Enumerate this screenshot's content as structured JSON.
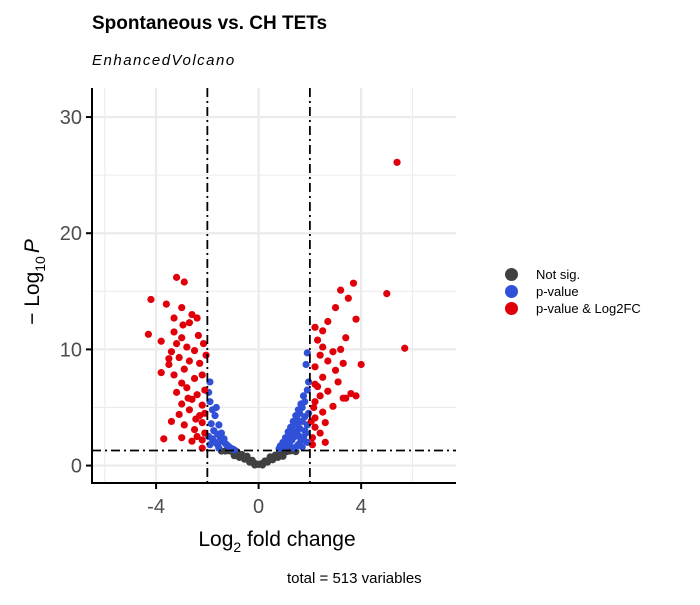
{
  "chart_data": {
    "type": "scatter",
    "title": "Spontaneous vs. CH TETs",
    "subtitle": "EnhancedVolcano",
    "caption": "total = 513 variables",
    "xlabel_main": "Log",
    "xlabel_sub": "2",
    "xlabel_rest": " fold change",
    "ylabel_main": "− Log",
    "ylabel_sub": "10",
    "ylabel_rest": "P",
    "xlim": [
      -6.5,
      7.7
    ],
    "ylim": [
      -1.5,
      32.5
    ],
    "xticks": [
      -4,
      0,
      4
    ],
    "xtick_labels": [
      "-4",
      "0",
      "4"
    ],
    "yticks": [
      0,
      10,
      20,
      30
    ],
    "ytick_labels": [
      "0",
      "10",
      "20",
      "30"
    ],
    "x_gridlines": [
      -6,
      -4,
      -2,
      0,
      2,
      4,
      6
    ],
    "y_gridlines": [
      0,
      5,
      10,
      15,
      20,
      25,
      30
    ],
    "grid": true,
    "fc_cutoff": [
      -2,
      2
    ],
    "p_cutoff_log10": 1.3,
    "legend_position": "right",
    "legend": [
      {
        "name": "Not sig.",
        "color": "#404040"
      },
      {
        "name": "p-value",
        "color": "#3050d8"
      },
      {
        "name": "p-value & Log2FC",
        "color": "#e0000a"
      }
    ],
    "series": [
      {
        "name": "Not sig.",
        "color": "#404040",
        "points": [
          [
            0,
            0.1
          ],
          [
            0.1,
            0.15
          ],
          [
            -0.1,
            0.15
          ],
          [
            0.2,
            0.25
          ],
          [
            -0.2,
            0.25
          ],
          [
            0.3,
            0.35
          ],
          [
            -0.3,
            0.35
          ],
          [
            0.4,
            0.45
          ],
          [
            -0.4,
            0.5
          ],
          [
            0.5,
            0.6
          ],
          [
            -0.5,
            0.6
          ],
          [
            0.6,
            0.7
          ],
          [
            -0.6,
            0.75
          ],
          [
            0.7,
            0.85
          ],
          [
            -0.7,
            0.9
          ],
          [
            0.8,
            0.95
          ],
          [
            -0.8,
            1.0
          ],
          [
            0.9,
            1.05
          ],
          [
            -0.9,
            1.1
          ],
          [
            1.0,
            1.15
          ],
          [
            -1.0,
            1.2
          ],
          [
            0.35,
            0.3
          ],
          [
            -0.35,
            0.3
          ],
          [
            0.55,
            0.5
          ],
          [
            -0.55,
            0.55
          ],
          [
            0.15,
            0.05
          ],
          [
            -0.15,
            0.05
          ],
          [
            0.75,
            0.7
          ],
          [
            -0.75,
            0.7
          ],
          [
            1.1,
            1.2
          ],
          [
            -1.1,
            1.25
          ],
          [
            1.2,
            1.25
          ],
          [
            -1.2,
            1.28
          ],
          [
            0.65,
            0.9
          ],
          [
            -0.65,
            0.95
          ],
          [
            0.45,
            0.75
          ],
          [
            -0.45,
            0.8
          ],
          [
            0.25,
            0.4
          ],
          [
            -0.25,
            0.45
          ],
          [
            0.85,
            1.2
          ],
          [
            -0.85,
            1.2
          ],
          [
            1.3,
            1.28
          ],
          [
            -1.3,
            1.25
          ],
          [
            1.45,
            1.2
          ],
          [
            -1.45,
            1.25
          ],
          [
            0.95,
            0.8
          ],
          [
            -0.95,
            0.85
          ]
        ]
      },
      {
        "name": "p-value",
        "color": "#3050d8",
        "points": [
          [
            -1.9,
            5.5
          ],
          [
            -1.8,
            4.8
          ],
          [
            -1.7,
            4.3
          ],
          [
            -1.85,
            3.6
          ],
          [
            -1.75,
            3.0
          ],
          [
            -1.6,
            2.7
          ],
          [
            -1.5,
            2.4
          ],
          [
            -1.4,
            2.1
          ],
          [
            -1.3,
            1.9
          ],
          [
            -1.2,
            1.7
          ],
          [
            -1.1,
            1.5
          ],
          [
            -1.0,
            1.4
          ],
          [
            -1.95,
            6.3
          ],
          [
            -1.9,
            7.2
          ],
          [
            -1.65,
            5.0
          ],
          [
            -1.55,
            3.5
          ],
          [
            -1.45,
            2.8
          ],
          [
            -1.35,
            2.3
          ],
          [
            -1.25,
            1.8
          ],
          [
            -1.15,
            1.6
          ],
          [
            -1.05,
            1.45
          ],
          [
            -0.95,
            1.35
          ],
          [
            -1.8,
            2.3
          ],
          [
            -1.7,
            2.0
          ],
          [
            -1.6,
            1.8
          ],
          [
            -1.55,
            1.5
          ],
          [
            -1.9,
            1.8
          ],
          [
            -1.95,
            2.5
          ],
          [
            1.9,
            9.7
          ],
          [
            1.85,
            8.7
          ],
          [
            1.9,
            6.5
          ],
          [
            1.8,
            5.5
          ],
          [
            1.7,
            5.0
          ],
          [
            1.6,
            4.5
          ],
          [
            1.5,
            4.0
          ],
          [
            1.4,
            3.5
          ],
          [
            1.3,
            3.0
          ],
          [
            1.2,
            2.6
          ],
          [
            1.1,
            2.2
          ],
          [
            1.0,
            1.9
          ],
          [
            0.9,
            1.6
          ],
          [
            0.8,
            1.45
          ],
          [
            1.95,
            7.2
          ],
          [
            1.75,
            6.0
          ],
          [
            1.65,
            5.3
          ],
          [
            1.55,
            4.8
          ],
          [
            1.45,
            4.3
          ],
          [
            1.35,
            3.8
          ],
          [
            1.25,
            3.3
          ],
          [
            1.15,
            2.9
          ],
          [
            1.05,
            2.4
          ],
          [
            0.95,
            2.0
          ],
          [
            0.85,
            1.7
          ],
          [
            1.8,
            4.2
          ],
          [
            1.7,
            3.8
          ],
          [
            1.6,
            3.2
          ],
          [
            1.5,
            2.8
          ],
          [
            1.4,
            2.5
          ],
          [
            1.3,
            2.2
          ],
          [
            1.2,
            1.9
          ],
          [
            1.1,
            1.7
          ],
          [
            1.0,
            1.5
          ],
          [
            1.9,
            3.5
          ],
          [
            1.85,
            2.8
          ],
          [
            1.75,
            2.4
          ],
          [
            1.65,
            2.1
          ],
          [
            1.55,
            1.8
          ],
          [
            1.45,
            1.6
          ],
          [
            1.35,
            1.5
          ],
          [
            1.95,
            4.5
          ],
          [
            1.8,
            3.0
          ],
          [
            1.6,
            2.5
          ],
          [
            1.7,
            1.6
          ],
          [
            1.9,
            2.0
          ],
          [
            1.5,
            3.5
          ],
          [
            1.4,
            2.9
          ]
        ]
      },
      {
        "name": "p-value & Log2FC",
        "color": "#e0000a",
        "points": [
          [
            -3.2,
            16.2
          ],
          [
            -2.9,
            15.8
          ],
          [
            -4.2,
            14.3
          ],
          [
            -3.6,
            13.9
          ],
          [
            -3.0,
            13.6
          ],
          [
            -2.6,
            13.0
          ],
          [
            -3.3,
            12.7
          ],
          [
            -2.95,
            12.1
          ],
          [
            -3.3,
            11.5
          ],
          [
            -4.3,
            11.3
          ],
          [
            -3.8,
            10.7
          ],
          [
            -3.0,
            11.0
          ],
          [
            -2.4,
            12.7
          ],
          [
            -2.7,
            12.3
          ],
          [
            -3.2,
            10.5
          ],
          [
            -2.8,
            10.2
          ],
          [
            -3.4,
            9.8
          ],
          [
            -2.5,
            9.9
          ],
          [
            -3.1,
            9.3
          ],
          [
            -2.7,
            9.0
          ],
          [
            -3.5,
            8.7
          ],
          [
            -2.3,
            8.8
          ],
          [
            -2.9,
            8.3
          ],
          [
            -3.3,
            7.8
          ],
          [
            -2.5,
            7.5
          ],
          [
            -3.0,
            7.1
          ],
          [
            -3.8,
            8.0
          ],
          [
            -2.2,
            7.8
          ],
          [
            -2.8,
            6.7
          ],
          [
            -3.2,
            6.3
          ],
          [
            -2.4,
            6.1
          ],
          [
            -2.6,
            5.7
          ],
          [
            -3.0,
            5.3
          ],
          [
            -2.2,
            5.2
          ],
          [
            -2.7,
            4.8
          ],
          [
            -2.3,
            4.3
          ],
          [
            -3.4,
            3.8
          ],
          [
            -2.9,
            3.5
          ],
          [
            -2.5,
            3.1
          ],
          [
            -2.2,
            3.7
          ],
          [
            -2.4,
            2.5
          ],
          [
            -2.1,
            2.8
          ],
          [
            -2.6,
            2.1
          ],
          [
            -2.2,
            1.5
          ],
          [
            -3.7,
            2.3
          ],
          [
            -3.0,
            2.4
          ],
          [
            -2.1,
            6.5
          ],
          [
            -2.05,
            9.5
          ],
          [
            -2.15,
            10.5
          ],
          [
            -2.35,
            11.2
          ],
          [
            -2.1,
            4.5
          ],
          [
            -2.45,
            4.0
          ],
          [
            -2.75,
            5.8
          ],
          [
            -3.1,
            4.4
          ],
          [
            -2.2,
            2.2
          ],
          [
            -3.5,
            9.2
          ],
          [
            5.4,
            26.1
          ],
          [
            3.7,
            15.7
          ],
          [
            3.2,
            15.1
          ],
          [
            3.5,
            14.4
          ],
          [
            5.0,
            14.8
          ],
          [
            3.0,
            13.6
          ],
          [
            3.8,
            12.6
          ],
          [
            2.7,
            12.4
          ],
          [
            2.2,
            11.9
          ],
          [
            2.5,
            11.6
          ],
          [
            3.4,
            11.0
          ],
          [
            2.3,
            10.8
          ],
          [
            2.5,
            10.2
          ],
          [
            3.2,
            10.0
          ],
          [
            5.7,
            10.1
          ],
          [
            2.9,
            9.8
          ],
          [
            2.4,
            9.5
          ],
          [
            2.7,
            9.0
          ],
          [
            3.3,
            8.8
          ],
          [
            4.0,
            8.7
          ],
          [
            2.2,
            8.5
          ],
          [
            3.0,
            8.2
          ],
          [
            2.5,
            7.6
          ],
          [
            3.1,
            7.2
          ],
          [
            2.2,
            7.0
          ],
          [
            2.7,
            6.4
          ],
          [
            3.6,
            6.2
          ],
          [
            2.4,
            6.0
          ],
          [
            3.3,
            5.8
          ],
          [
            2.2,
            5.5
          ],
          [
            2.9,
            5.1
          ],
          [
            2.5,
            4.6
          ],
          [
            2.2,
            4.1
          ],
          [
            2.6,
            3.7
          ],
          [
            2.2,
            3.3
          ],
          [
            2.4,
            2.8
          ],
          [
            2.1,
            2.4
          ],
          [
            2.6,
            2.0
          ],
          [
            3.4,
            5.8
          ],
          [
            3.8,
            6.0
          ],
          [
            2.1,
            1.8
          ],
          [
            2.3,
            6.8
          ],
          [
            2.05,
            3.8
          ],
          [
            2.15,
            5.0
          ]
        ]
      }
    ]
  }
}
